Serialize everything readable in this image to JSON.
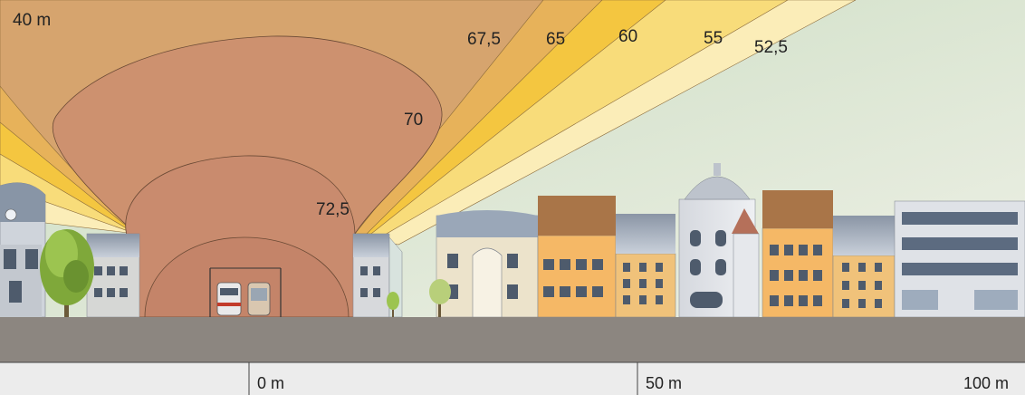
{
  "height_label": "40 m",
  "contour_labels": {
    "c67_5": "67,5",
    "c65": "65",
    "c60": "60",
    "c55": "55",
    "c52_5": "52,5",
    "c70": "70",
    "c72_5": "72,5"
  },
  "distance_scale": {
    "zero": "0 m",
    "fifty": "50 m",
    "hundred": "100 m"
  },
  "colors": {
    "sky_top": "#cfe0c4",
    "sky_bottom": "#e9eedf",
    "zone_72_5": "#c98b6e",
    "zone_70": "#cd916f",
    "zone_67_5": "#d6a46e",
    "zone_65": "#e7b25a",
    "zone_60": "#f4c640",
    "zone_55": "#f8dc7a",
    "zone_52_5": "#fbedb8",
    "ground": "#8c8680",
    "scale_bar": "#ececec"
  }
}
